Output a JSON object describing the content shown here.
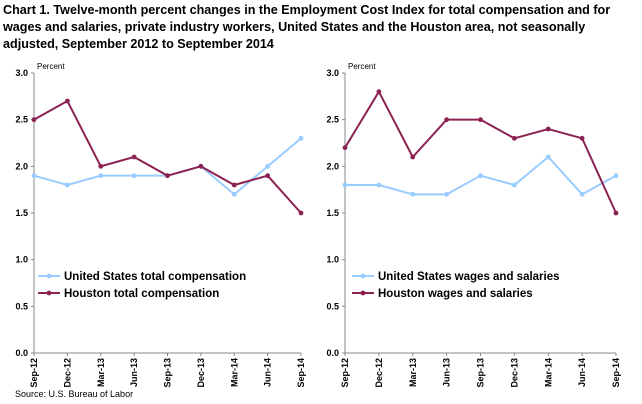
{
  "title": "Chart 1. Twelve-month percent changes in the Employment Cost Index for total compensation and for wages and salaries, private industry workers, United States and the Houston area, not seasonally adjusted, September 2012 to September 2014",
  "source": "Source: U.S. Bureau of Labor",
  "chart_data": [
    {
      "type": "line",
      "ylabel": "Percent",
      "ylim": [
        0,
        3.0
      ],
      "yticks": [
        "0.0",
        "0.5",
        "1.0",
        "1.5",
        "2.0",
        "2.5",
        "3.0"
      ],
      "categories": [
        "Sep-12",
        "Dec-12",
        "Mar-13",
        "Jun-13",
        "Sep-13",
        "Dec-13",
        "Mar-14",
        "Jun-14",
        "Sep-14"
      ],
      "legend_position": "lower-left",
      "series": [
        {
          "name": "United States total compensation",
          "color": "#99ccff",
          "values": [
            1.9,
            1.8,
            1.9,
            1.9,
            1.9,
            2.0,
            1.7,
            2.0,
            2.3
          ]
        },
        {
          "name": "Houston total compensation",
          "color": "#8b2252",
          "values": [
            2.5,
            2.7,
            2.0,
            2.1,
            1.9,
            2.0,
            1.8,
            1.9,
            1.5
          ]
        }
      ]
    },
    {
      "type": "line",
      "ylabel": "Percent",
      "ylim": [
        0,
        3.0
      ],
      "yticks": [
        "0.0",
        "0.5",
        "1.0",
        "1.5",
        "2.0",
        "2.5",
        "3.0"
      ],
      "categories": [
        "Sep-12",
        "Dec-12",
        "Mar-13",
        "Jun-13",
        "Sep-13",
        "Dec-13",
        "Mar-14",
        "Jun-14",
        "Sep-14"
      ],
      "legend_position": "lower-left",
      "series": [
        {
          "name": "United States wages and salaries",
          "color": "#99ccff",
          "values": [
            1.8,
            1.8,
            1.7,
            1.7,
            1.9,
            1.8,
            2.1,
            1.7,
            1.9
          ]
        },
        {
          "name": "Houston wages and salaries",
          "color": "#8b2252",
          "values": [
            2.2,
            2.8,
            2.1,
            2.5,
            2.5,
            2.3,
            2.4,
            2.3,
            1.5
          ]
        }
      ]
    }
  ]
}
